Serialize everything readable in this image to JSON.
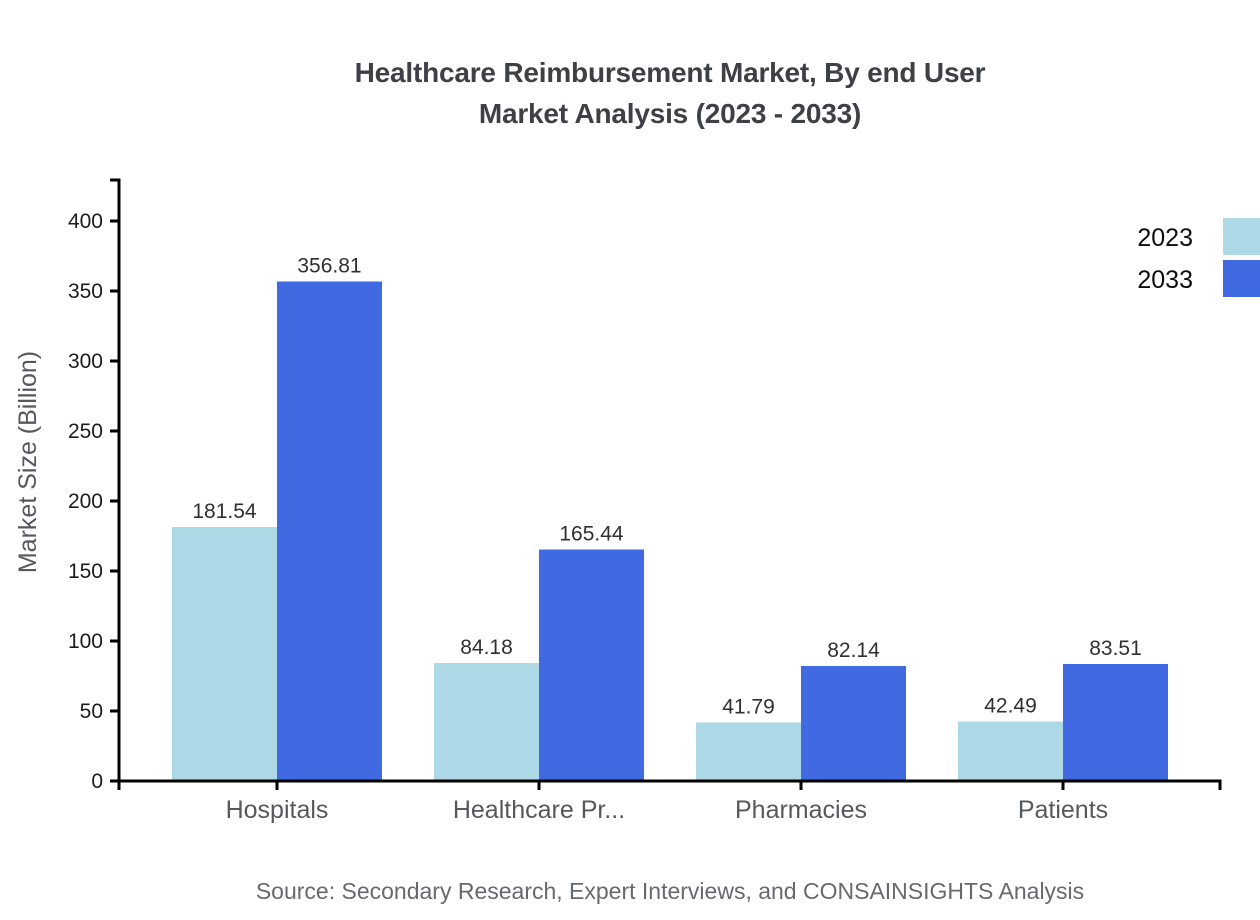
{
  "title": {
    "line1": "Healthcare Reimbursement Market, By end User",
    "line2": "Market Analysis (2023 - 2033)"
  },
  "source_note": "Source: Secondary Research, Expert Interviews, and CONSAINSIGHTS Analysis",
  "colors": {
    "series_2023": "#ADD8E6",
    "series_2033": "#4169E1",
    "axis": "#000000",
    "tick_label": "#1c1c1c",
    "category_label": "#55595d",
    "value_label": "#2e3033",
    "axis_title": "#55595d",
    "legend_text": "#0d0d0d",
    "title_text": "#3d4045",
    "source_text": "#666a6e"
  },
  "chart_data": {
    "type": "bar",
    "title": "Healthcare Reimbursement Market, By end User Market Analysis (2023 - 2033)",
    "categories": [
      "Hospitals",
      "Healthcare Pr...",
      "Pharmacies",
      "Patients"
    ],
    "series": [
      {
        "name": "2023",
        "color": "#ADD8E6",
        "values": [
          181.54,
          84.18,
          41.79,
          42.49
        ]
      },
      {
        "name": "2033",
        "color": "#4169E1",
        "values": [
          356.81,
          165.44,
          82.14,
          83.51
        ]
      }
    ],
    "value_labels": [
      "181.54",
      "356.81",
      "84.18",
      "165.44",
      "41.79",
      "82.14",
      "42.49",
      "83.51"
    ],
    "xlabel": "",
    "ylabel": "Market Size (Billion)",
    "yticks": [
      0,
      50,
      100,
      150,
      200,
      250,
      300,
      350,
      400
    ],
    "ylim": [
      0,
      430
    ],
    "grid": false,
    "legend_position": "top-right",
    "legend_entries": [
      "2023",
      "2033"
    ]
  }
}
